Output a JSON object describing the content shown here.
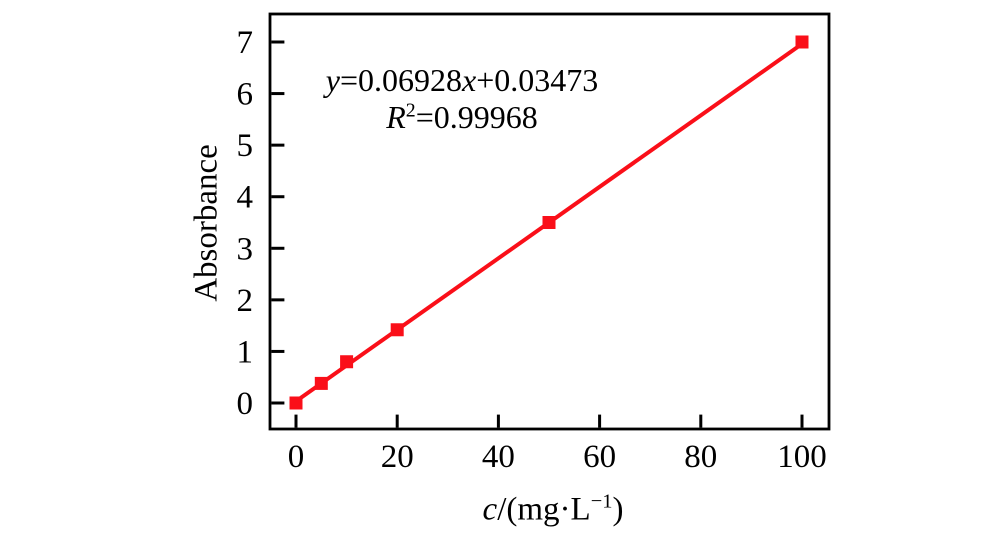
{
  "chart_data": {
    "type": "scatter",
    "title": "",
    "ylabel": "Absorbance",
    "xlabel_parts": {
      "var": "c",
      "mid": "/(mg·L",
      "sup": "−1",
      "end": ")"
    },
    "xlim": [
      0,
      100
    ],
    "ylim": [
      0,
      7
    ],
    "x_ticks": [
      0,
      20,
      40,
      60,
      80,
      100
    ],
    "y_ticks": [
      0,
      1,
      2,
      3,
      4,
      5,
      6,
      7
    ],
    "grid": false,
    "legend": "none",
    "points": {
      "x": [
        0,
        5,
        10,
        20,
        50,
        100
      ],
      "y": [
        0.0,
        0.38,
        0.8,
        1.42,
        3.5,
        7.0
      ]
    },
    "fit": {
      "slope": 0.06928,
      "intercept": 0.03473,
      "r_squared": 0.99968,
      "x_start": 0,
      "x_end": 100
    },
    "annotation": {
      "line1": {
        "var1": "y",
        "eq1": "=0.06928",
        "var2": "x",
        "eq2": "+0.03473"
      },
      "line2": {
        "var": "R",
        "sup": "2",
        "eq": "=0.99968"
      }
    },
    "colors": {
      "line": "#fa0f19",
      "marker": "#fa0f19",
      "axis": "#000000",
      "text": "#000000",
      "background": "#ffffff"
    }
  }
}
